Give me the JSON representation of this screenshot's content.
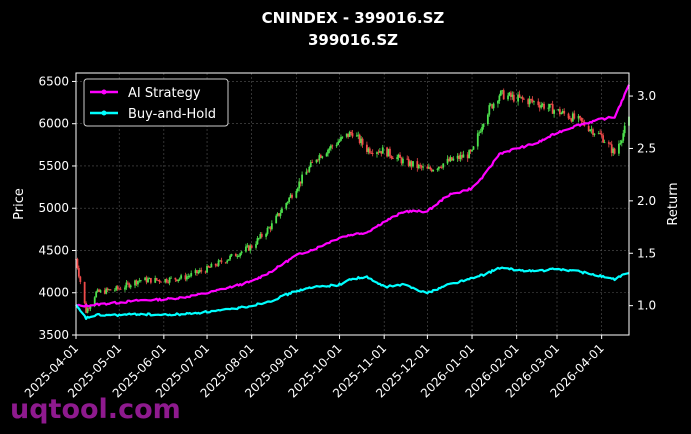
{
  "chart_data": {
    "type": "candlestick+line",
    "title": "CNINDEX - 399016.SZ",
    "subtitle": "399016.SZ",
    "ylabel_left": "Price",
    "ylabel_right": "Return",
    "ylim_left": [
      3500,
      6600
    ],
    "ylim_right": [
      0.72,
      3.22
    ],
    "yticks_left": [
      "3500",
      "4000",
      "4500",
      "5000",
      "5500",
      "6000",
      "6500"
    ],
    "yticks_right": [
      "1.0",
      "1.5",
      "2.0",
      "2.5",
      "3.0"
    ],
    "x_range": [
      "2025-04-01",
      "2026-04-20"
    ],
    "xticks": [
      "2025-04-01",
      "2025-05-01",
      "2025-06-01",
      "2025-07-01",
      "2025-08-01",
      "2025-09-01",
      "2025-10-01",
      "2025-11-01",
      "2025-12-01",
      "2026-01-01",
      "2026-02-01",
      "2026-03-01",
      "2026-04-01"
    ],
    "grid": true,
    "legend_position": "top-left",
    "colors": {
      "up_candle": "#4de14d",
      "down_candle": "#ef4a4a",
      "ai_strategy": "#ff00ff",
      "buy_and_hold": "#00ffff",
      "grid": "#555555",
      "watermark": "#8e1a8e"
    },
    "price_series": {
      "name": "399016.SZ",
      "dates": [
        "2025-04-01",
        "2025-04-08",
        "2025-04-15",
        "2025-05-01",
        "2025-05-15",
        "2025-06-01",
        "2025-06-15",
        "2025-07-01",
        "2025-07-15",
        "2025-08-01",
        "2025-08-15",
        "2025-09-01",
        "2025-09-15",
        "2025-10-01",
        "2025-10-10",
        "2025-10-20",
        "2025-11-01",
        "2025-11-15",
        "2025-12-01",
        "2025-12-15",
        "2026-01-01",
        "2026-01-10",
        "2026-01-20",
        "2026-02-01",
        "2026-02-15",
        "2026-03-01",
        "2026-03-15",
        "2026-04-01",
        "2026-04-10",
        "2026-04-20"
      ],
      "close": [
        4400,
        3780,
        4000,
        4050,
        4150,
        4150,
        4180,
        4280,
        4400,
        4550,
        4800,
        5250,
        5600,
        5800,
        5900,
        5700,
        5680,
        5550,
        5450,
        5550,
        5650,
        6100,
        6350,
        6300,
        6250,
        6150,
        6050,
        5850,
        5650,
        6050
      ]
    },
    "series": [
      {
        "name": "AI Strategy",
        "dates": [
          "2025-04-01",
          "2025-04-08",
          "2025-04-15",
          "2025-05-01",
          "2025-05-15",
          "2025-06-01",
          "2025-06-15",
          "2025-07-01",
          "2025-07-15",
          "2025-08-01",
          "2025-08-15",
          "2025-09-01",
          "2025-09-15",
          "2025-10-01",
          "2025-10-10",
          "2025-10-20",
          "2025-11-01",
          "2025-11-15",
          "2025-12-01",
          "2025-12-15",
          "2026-01-01",
          "2026-01-10",
          "2026-01-20",
          "2026-02-01",
          "2026-02-15",
          "2026-03-01",
          "2026-03-15",
          "2026-04-01",
          "2026-04-10",
          "2026-04-20"
        ],
        "values": [
          1.0,
          1.0,
          1.01,
          1.03,
          1.05,
          1.06,
          1.08,
          1.12,
          1.17,
          1.23,
          1.33,
          1.48,
          1.55,
          1.65,
          1.68,
          1.7,
          1.8,
          1.9,
          1.9,
          2.05,
          2.12,
          2.25,
          2.45,
          2.5,
          2.55,
          2.65,
          2.72,
          2.78,
          2.8,
          3.1
        ]
      },
      {
        "name": "Buy-and-Hold",
        "dates": [
          "2025-04-01",
          "2025-04-08",
          "2025-04-15",
          "2025-05-01",
          "2025-05-15",
          "2025-06-01",
          "2025-06-15",
          "2025-07-01",
          "2025-07-15",
          "2025-08-01",
          "2025-08-15",
          "2025-09-01",
          "2025-09-15",
          "2025-10-01",
          "2025-10-10",
          "2025-10-20",
          "2025-11-01",
          "2025-11-15",
          "2025-12-01",
          "2025-12-15",
          "2026-01-01",
          "2026-01-10",
          "2026-01-20",
          "2026-02-01",
          "2026-02-15",
          "2026-03-01",
          "2026-03-15",
          "2026-04-01",
          "2026-04-10",
          "2026-04-20"
        ],
        "values": [
          1.0,
          0.88,
          0.91,
          0.91,
          0.92,
          0.91,
          0.92,
          0.94,
          0.96,
          1.0,
          1.05,
          1.14,
          1.18,
          1.2,
          1.26,
          1.27,
          1.18,
          1.2,
          1.12,
          1.2,
          1.26,
          1.3,
          1.36,
          1.34,
          1.33,
          1.35,
          1.33,
          1.28,
          1.25,
          1.32
        ]
      }
    ]
  },
  "watermark": "uqtool.com"
}
